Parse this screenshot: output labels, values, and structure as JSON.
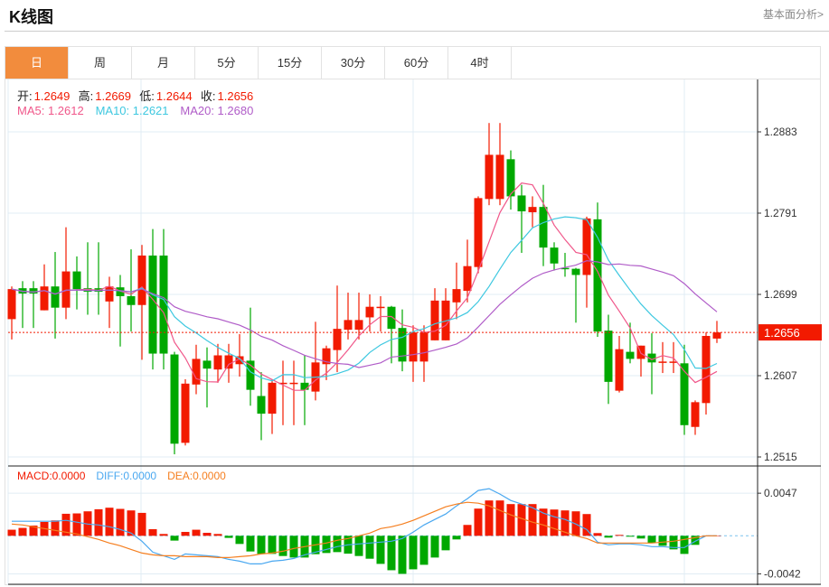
{
  "header": {
    "title": "K线图",
    "link": "基本面分析>"
  },
  "tabs": [
    {
      "label": "日",
      "active": true
    },
    {
      "label": "周"
    },
    {
      "label": "月"
    },
    {
      "label": "5分"
    },
    {
      "label": "15分"
    },
    {
      "label": "30分"
    },
    {
      "label": "60分"
    },
    {
      "label": "4时"
    }
  ],
  "ohlc_info": {
    "open_label": "开:",
    "open": "1.2649",
    "high_label": "高:",
    "high": "1.2669",
    "low_label": "低:",
    "low": "1.2644",
    "close_label": "收:",
    "close": "1.2656"
  },
  "ma_info": {
    "ma5": "MA5: 1.2612",
    "ma10": "MA10: 1.2621",
    "ma20": "MA20: 1.2680"
  },
  "macd_info": {
    "macd": "MACD:0.0000",
    "diff": "DIFF:0.0000",
    "dea": "DEA:0.0000"
  },
  "colors": {
    "up": "#f21a00",
    "down": "#00a800",
    "ma5": "#f0578a",
    "ma10": "#3ec8e0",
    "ma20": "#b05cc8",
    "diff": "#4aa8f0",
    "dea": "#f57f20",
    "accent": "#f28c3d"
  },
  "chart_data": [
    {
      "type": "candlestick",
      "title": "K线图",
      "ylim": [
        1.2497,
        1.2913
      ],
      "yticks": [
        "1.2883",
        "1.2791",
        "1.2699",
        "1.2607",
        "1.2515"
      ],
      "last_price": "1.2656",
      "ma_periods": [
        5,
        10,
        20
      ],
      "ohlc": [
        [
          1.2671,
          1.2708,
          1.2648,
          1.2705
        ],
        [
          1.2706,
          1.2714,
          1.2661,
          1.27
        ],
        [
          1.2706,
          1.2714,
          1.2661,
          1.27
        ],
        [
          1.2681,
          1.2733,
          1.2681,
          1.2708
        ],
        [
          1.2708,
          1.2747,
          1.2649,
          1.2684
        ],
        [
          1.2684,
          1.2775,
          1.2671,
          1.2725
        ],
        [
          1.2725,
          1.2742,
          1.2682,
          1.2705
        ],
        [
          1.2706,
          1.2758,
          1.2676,
          1.2702
        ],
        [
          1.2706,
          1.2758,
          1.2676,
          1.2702
        ],
        [
          1.2691,
          1.2719,
          1.2661,
          1.2708
        ],
        [
          1.2707,
          1.2721,
          1.264,
          1.2697
        ],
        [
          1.2697,
          1.275,
          1.2657,
          1.2687
        ],
        [
          1.2687,
          1.2755,
          1.2625,
          1.2743
        ],
        [
          1.2743,
          1.2773,
          1.2614,
          1.2632
        ],
        [
          1.2743,
          1.2773,
          1.2614,
          1.2632
        ],
        [
          1.2631,
          1.2634,
          1.2518,
          1.253
        ],
        [
          1.2531,
          1.2603,
          1.2528,
          1.2598
        ],
        [
          1.2597,
          1.2642,
          1.2586,
          1.2626
        ],
        [
          1.2624,
          1.2639,
          1.2571,
          1.2615
        ],
        [
          1.2614,
          1.2643,
          1.2599,
          1.263
        ],
        [
          1.2615,
          1.2643,
          1.2599,
          1.263
        ],
        [
          1.262,
          1.2654,
          1.2606,
          1.2629
        ],
        [
          1.2624,
          1.2684,
          1.2573,
          1.2591
        ],
        [
          1.2584,
          1.2611,
          1.2534,
          1.2564
        ],
        [
          1.2564,
          1.2603,
          1.2541,
          1.2599
        ],
        [
          1.2598,
          1.2624,
          1.2551,
          1.2599
        ],
        [
          1.2598,
          1.2624,
          1.2551,
          1.2599
        ],
        [
          1.2599,
          1.263,
          1.2551,
          1.2591
        ],
        [
          1.2589,
          1.2668,
          1.2579,
          1.2622
        ],
        [
          1.262,
          1.2641,
          1.2602,
          1.2638
        ],
        [
          1.2636,
          1.2709,
          1.2611,
          1.266
        ],
        [
          1.2659,
          1.2701,
          1.2648,
          1.267
        ],
        [
          1.2659,
          1.2701,
          1.2648,
          1.267
        ],
        [
          1.2673,
          1.2699,
          1.2657,
          1.2685
        ],
        [
          1.2684,
          1.2697,
          1.2657,
          1.2685
        ],
        [
          1.2685,
          1.2686,
          1.2621,
          1.266
        ],
        [
          1.2661,
          1.2682,
          1.2612,
          1.2623
        ],
        [
          1.2623,
          1.2664,
          1.26,
          1.2656
        ],
        [
          1.2623,
          1.2664,
          1.26,
          1.2656
        ],
        [
          1.2647,
          1.2706,
          1.2647,
          1.2692
        ],
        [
          1.2647,
          1.2706,
          1.2647,
          1.2692
        ],
        [
          1.269,
          1.2735,
          1.2671,
          1.2705
        ],
        [
          1.2703,
          1.2761,
          1.269,
          1.2731
        ],
        [
          1.273,
          1.281,
          1.2723,
          1.2808
        ],
        [
          1.2807,
          1.2893,
          1.28,
          1.2857
        ],
        [
          1.2807,
          1.2893,
          1.28,
          1.2857
        ],
        [
          1.2852,
          1.2862,
          1.2795,
          1.281
        ],
        [
          1.2811,
          1.2823,
          1.2746,
          1.2793
        ],
        [
          1.2792,
          1.281,
          1.2775,
          1.2798
        ],
        [
          1.2798,
          1.2823,
          1.2731,
          1.2752
        ],
        [
          1.2752,
          1.2758,
          1.2726,
          1.2734
        ],
        [
          1.2729,
          1.2746,
          1.2719,
          1.2728
        ],
        [
          1.2728,
          1.2729,
          1.2667,
          1.2721
        ],
        [
          1.2721,
          1.2787,
          1.2684,
          1.2785
        ],
        [
          1.2784,
          1.2803,
          1.2651,
          1.2657
        ],
        [
          1.2658,
          1.2676,
          1.2575,
          1.26
        ],
        [
          1.259,
          1.2652,
          1.2588,
          1.2637
        ],
        [
          1.2634,
          1.2667,
          1.2621,
          1.2626
        ],
        [
          1.2626,
          1.2641,
          1.2606,
          1.2641
        ],
        [
          1.2632,
          1.2655,
          1.2586,
          1.2622
        ],
        [
          1.2622,
          1.2645,
          1.261,
          1.2623
        ],
        [
          1.2622,
          1.2645,
          1.261,
          1.2623
        ],
        [
          1.2621,
          1.2642,
          1.254,
          1.2551
        ],
        [
          1.2549,
          1.2579,
          1.254,
          1.2577
        ],
        [
          1.2576,
          1.2656,
          1.2563,
          1.2652
        ],
        [
          1.2649,
          1.2669,
          1.2644,
          1.2656
        ]
      ]
    },
    {
      "type": "bar",
      "title": "MACD",
      "ylim": [
        -0.0045,
        0.0048
      ],
      "yticks": [
        "0.0047",
        "-0.0042"
      ],
      "macd": [
        0.00067,
        0.00087,
        0.00113,
        0.00153,
        0.0017,
        0.00243,
        0.00247,
        0.0027,
        0.00293,
        0.0031,
        0.00297,
        0.0028,
        0.00253,
        0.00073,
        0.0002,
        -0.00053,
        0.00043,
        0.00067,
        0.00033,
        0.0002,
        -0.00023,
        -0.0009,
        -0.00173,
        -0.002,
        -0.002,
        -0.00223,
        -0.0024,
        -0.0024,
        -0.00203,
        -0.0019,
        -0.0018,
        -0.00197,
        -0.00223,
        -0.00253,
        -0.0031,
        -0.0038,
        -0.0042,
        -0.0037,
        -0.0032,
        -0.0024,
        -0.0016,
        -0.0004,
        0.0012,
        0.003,
        0.0039,
        0.0039,
        0.0035,
        0.0035,
        0.0035,
        0.003,
        0.0029,
        0.0028,
        0.0027,
        0.0024,
        0.0003,
        -0.0002,
        0.0001,
        -0.0001,
        -0.0003,
        -0.0008,
        -0.0011,
        -0.0015,
        -0.002,
        -0.001,
        0,
        0
      ],
      "diff": [
        0.0016,
        0.0016,
        0.0016,
        0.0016,
        0.0016,
        0.0017,
        0.0015,
        0.0013,
        0.0012,
        0.001,
        0.0007,
        0.0003,
        -0.0006,
        -0.0018,
        -0.0022,
        -0.0026,
        -0.002,
        -0.0021,
        -0.0022,
        -0.0023,
        -0.0026,
        -0.0028,
        -0.0031,
        -0.0031,
        -0.0028,
        -0.0027,
        -0.0025,
        -0.0021,
        -0.0018,
        -0.0015,
        -0.0012,
        -0.001,
        -0.0009,
        -0.0008,
        -0.0007,
        -0.0006,
        -0.0003,
        0.0004,
        0.0012,
        0.0018,
        0.0024,
        0.0033,
        0.0041,
        0.005,
        0.0052,
        0.0046,
        0.0039,
        0.0035,
        0.0031,
        0.0025,
        0.0021,
        0.0018,
        0.0013,
        0.0007,
        -0.0007,
        -0.001,
        -0.0009,
        -0.0009,
        -0.001,
        -0.0012,
        -0.0012,
        -0.0013,
        -0.0013,
        -0.0006,
        0,
        0
      ],
      "dea": [
        0.0013,
        0.0012,
        0.001,
        0.0008,
        0.0006,
        0.0004,
        0.0002,
        -0.0001,
        -0.0004,
        -0.0008,
        -0.0011,
        -0.0015,
        -0.0019,
        -0.0021,
        -0.0022,
        -0.0022,
        -0.0023,
        -0.0023,
        -0.0023,
        -0.0024,
        -0.0024,
        -0.0023,
        -0.0022,
        -0.002,
        -0.0019,
        -0.0017,
        -0.0014,
        -0.0012,
        -0.001,
        -0.0008,
        -0.0005,
        -0.0003,
        0,
        0.0003,
        0.0008,
        0.001,
        0.0013,
        0.0017,
        0.0022,
        0.0027,
        0.0032,
        0.0035,
        0.0037,
        0.0036,
        0.0033,
        0.0028,
        0.0023,
        0.0019,
        0.0015,
        0.0012,
        0.0008,
        0.0004,
        0,
        -0.0003,
        -0.0008,
        -0.0008,
        -0.0008,
        -0.0008,
        -0.0008,
        -0.0008,
        -0.0007,
        -0.0006,
        -0.0004,
        -0.0002,
        0,
        0
      ]
    }
  ]
}
